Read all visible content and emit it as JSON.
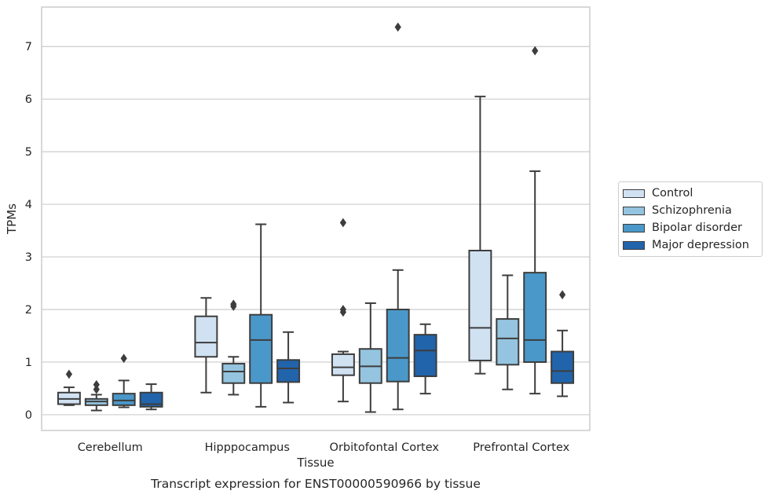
{
  "chart_data": {
    "type": "box",
    "title": "",
    "caption": "Transcript expression for ENST00000590966 by tissue",
    "xlabel": "Tissue",
    "ylabel": "TPMs",
    "ylim": [
      -0.3,
      7.75
    ],
    "yticks": [
      "0",
      "1",
      "2",
      "3",
      "4",
      "5",
      "6",
      "7"
    ],
    "grid": "horizontal",
    "legend_placement": "right",
    "categories": [
      "Cerebellum",
      "Hipppocampus",
      "Orbitofontal Cortex",
      "Prefrontal Cortex"
    ],
    "series": [
      {
        "name": "Control",
        "color": "#d0e1f2",
        "boxes": [
          {
            "whisker_low": 0.18,
            "q1": 0.2,
            "median": 0.3,
            "q3": 0.42,
            "whisker_high": 0.52,
            "outliers": [
              0.77
            ]
          },
          {
            "whisker_low": 0.42,
            "q1": 1.1,
            "median": 1.37,
            "q3": 1.87,
            "whisker_high": 2.22,
            "outliers": []
          },
          {
            "whisker_low": 0.25,
            "q1": 0.75,
            "median": 0.9,
            "q3": 1.15,
            "whisker_high": 1.2,
            "outliers": [
              1.95,
              2.0,
              3.65
            ]
          },
          {
            "whisker_low": 0.78,
            "q1": 1.03,
            "median": 1.65,
            "q3": 3.12,
            "whisker_high": 6.05,
            "outliers": []
          }
        ]
      },
      {
        "name": "Schizophrenia",
        "color": "#94c4df",
        "boxes": [
          {
            "whisker_low": 0.08,
            "q1": 0.18,
            "median": 0.25,
            "q3": 0.3,
            "whisker_high": 0.38,
            "outliers": [
              0.48,
              0.57
            ]
          },
          {
            "whisker_low": 0.38,
            "q1": 0.6,
            "median": 0.82,
            "q3": 0.97,
            "whisker_high": 1.1,
            "outliers": [
              2.06,
              2.1
            ]
          },
          {
            "whisker_low": 0.05,
            "q1": 0.6,
            "median": 0.92,
            "q3": 1.25,
            "whisker_high": 2.12,
            "outliers": []
          },
          {
            "whisker_low": 0.48,
            "q1": 0.95,
            "median": 1.45,
            "q3": 1.82,
            "whisker_high": 2.65,
            "outliers": []
          }
        ]
      },
      {
        "name": "Bipolar disorder",
        "color": "#4a98c9",
        "boxes": [
          {
            "whisker_low": 0.14,
            "q1": 0.18,
            "median": 0.27,
            "q3": 0.4,
            "whisker_high": 0.65,
            "outliers": [
              1.07
            ]
          },
          {
            "whisker_low": 0.15,
            "q1": 0.6,
            "median": 1.42,
            "q3": 1.9,
            "whisker_high": 3.62,
            "outliers": []
          },
          {
            "whisker_low": 0.1,
            "q1": 0.63,
            "median": 1.08,
            "q3": 2.0,
            "whisker_high": 2.75,
            "outliers": [
              7.37
            ]
          },
          {
            "whisker_low": 0.4,
            "q1": 1.0,
            "median": 1.42,
            "q3": 2.7,
            "whisker_high": 4.63,
            "outliers": [
              6.92
            ]
          }
        ]
      },
      {
        "name": "Major depression",
        "color": "#2164ab",
        "boxes": [
          {
            "whisker_low": 0.1,
            "q1": 0.15,
            "median": 0.2,
            "q3": 0.42,
            "whisker_high": 0.58,
            "outliers": []
          },
          {
            "whisker_low": 0.23,
            "q1": 0.62,
            "median": 0.88,
            "q3": 1.04,
            "whisker_high": 1.57,
            "outliers": []
          },
          {
            "whisker_low": 0.4,
            "q1": 0.73,
            "median": 1.22,
            "q3": 1.52,
            "whisker_high": 1.72,
            "outliers": []
          },
          {
            "whisker_low": 0.35,
            "q1": 0.6,
            "median": 0.83,
            "q3": 1.2,
            "whisker_high": 1.6,
            "outliers": [
              2.28
            ]
          }
        ]
      }
    ]
  }
}
